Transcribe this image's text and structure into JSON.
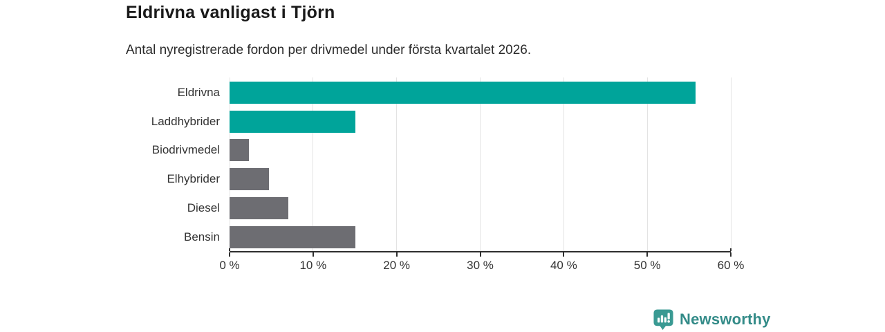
{
  "header": {
    "title": "Eldrivna vanligast i Tjörn",
    "subtitle": "Antal nyregistrerade fordon per drivmedel under första kvartalet 2026."
  },
  "chart_data": {
    "type": "bar",
    "orientation": "horizontal",
    "title": "Eldrivna vanligast i Tjörn",
    "subtitle": "Antal nyregistrerade fordon per drivmedel under första kvartalet 2026.",
    "categories": [
      "Eldrivna",
      "Laddhybrider",
      "Biodrivmedel",
      "Elhybrider",
      "Diesel",
      "Bensin"
    ],
    "values": [
      55.8,
      15.1,
      2.3,
      4.7,
      7.0,
      15.1
    ],
    "unit": "%",
    "xlim": [
      0,
      60
    ],
    "x_ticks": [
      "0 %",
      "10 %",
      "20 %",
      "30 %",
      "40 %",
      "50 %",
      "60 %"
    ],
    "x_tick_values": [
      0,
      10,
      20,
      30,
      40,
      50,
      60
    ],
    "grid": true,
    "legend": "none",
    "bar_colors": [
      "#00a49a",
      "#00a49a",
      "#6d6d72",
      "#6d6d72",
      "#6d6d72",
      "#6d6d72"
    ],
    "accent_color": "#00a49a",
    "neutral_color": "#6d6d72",
    "gridline_color": "#e3e3e3",
    "axis_color": "#2e2e2e",
    "label_color": "#333333"
  },
  "footer": {
    "brand": "Newsworthy",
    "brand_color": "#338b88",
    "logo_icon": "bar-chart-bubble-icon",
    "logo_color": "#3a9a93"
  }
}
